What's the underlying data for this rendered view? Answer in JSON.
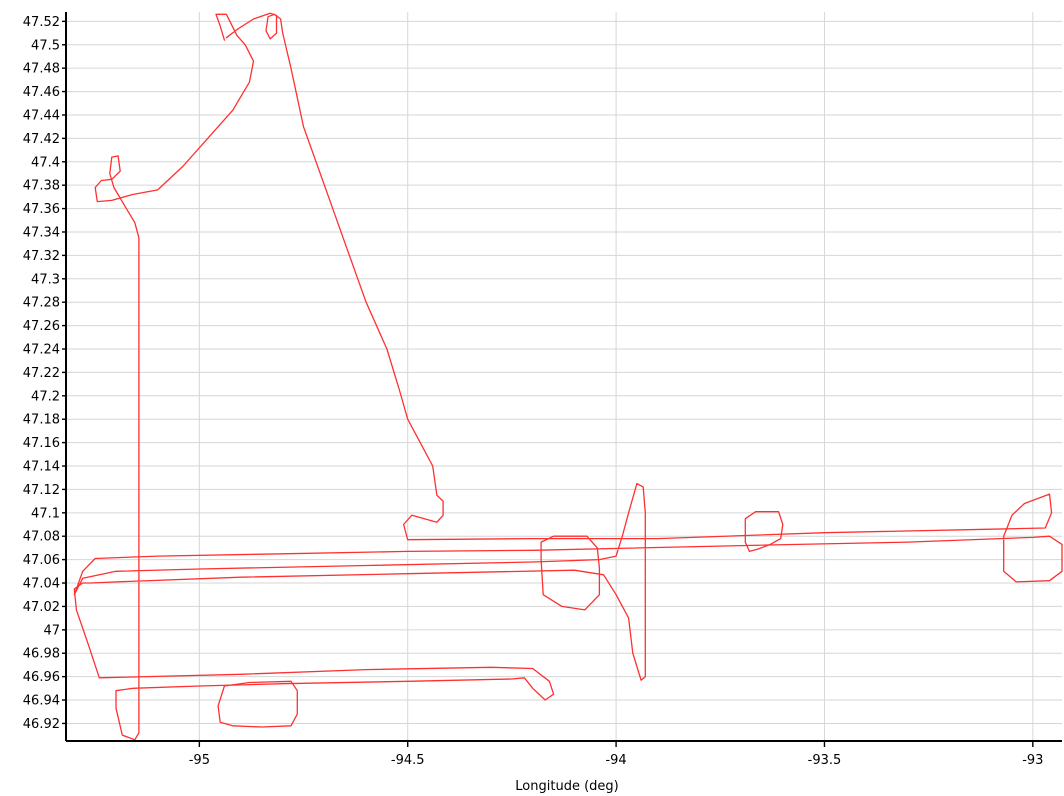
{
  "chart_data": {
    "type": "line",
    "title": "",
    "xlabel": "Longitude (deg)",
    "ylabel": "",
    "xlim": [
      -95.32,
      -92.93
    ],
    "ylim": [
      46.905,
      47.528
    ],
    "grid": true,
    "x_ticks": [
      {
        "value": -95,
        "label": "-95"
      },
      {
        "value": -94.5,
        "label": "-94.5"
      },
      {
        "value": -94,
        "label": "-94"
      },
      {
        "value": -93.5,
        "label": "-93.5"
      },
      {
        "value": -93,
        "label": "-93"
      }
    ],
    "y_ticks": [
      {
        "value": 47.52,
        "label": "47.52"
      },
      {
        "value": 47.5,
        "label": "47.5"
      },
      {
        "value": 47.48,
        "label": "47.48"
      },
      {
        "value": 47.46,
        "label": "47.46"
      },
      {
        "value": 47.44,
        "label": "47.44"
      },
      {
        "value": 47.42,
        "label": "47.42"
      },
      {
        "value": 47.4,
        "label": "47.4"
      },
      {
        "value": 47.38,
        "label": "47.38"
      },
      {
        "value": 47.36,
        "label": "47.36"
      },
      {
        "value": 47.34,
        "label": "47.34"
      },
      {
        "value": 47.32,
        "label": "47.32"
      },
      {
        "value": 47.3,
        "label": "47.3"
      },
      {
        "value": 47.28,
        "label": "47.28"
      },
      {
        "value": 47.26,
        "label": "47.26"
      },
      {
        "value": 47.24,
        "label": "47.24"
      },
      {
        "value": 47.22,
        "label": "47.22"
      },
      {
        "value": 47.2,
        "label": "47.2"
      },
      {
        "value": 47.18,
        "label": "47.18"
      },
      {
        "value": 47.16,
        "label": "47.16"
      },
      {
        "value": 47.14,
        "label": "47.14"
      },
      {
        "value": 47.12,
        "label": "47.12"
      },
      {
        "value": 47.1,
        "label": "47.1"
      },
      {
        "value": 47.08,
        "label": "47.08"
      },
      {
        "value": 47.06,
        "label": "47.06"
      },
      {
        "value": 47.04,
        "label": "47.04"
      },
      {
        "value": 47.02,
        "label": "47.02"
      },
      {
        "value": 47,
        "label": "47"
      },
      {
        "value": 46.98,
        "label": "46.98"
      },
      {
        "value": 46.96,
        "label": "46.96"
      },
      {
        "value": 46.94,
        "label": "46.94"
      },
      {
        "value": 46.92,
        "label": "46.92"
      }
    ],
    "series": [
      {
        "color": "#ff3030",
        "points": [
          [
            -94.94,
            47.504
          ],
          [
            -94.95,
            47.516
          ],
          [
            -94.96,
            47.526
          ],
          [
            -94.935,
            47.526
          ],
          [
            -94.91,
            47.508
          ],
          [
            -94.89,
            47.5
          ],
          [
            -94.87,
            47.486
          ],
          [
            -94.88,
            47.468
          ],
          [
            -94.92,
            47.444
          ],
          [
            -94.98,
            47.42
          ],
          [
            -95.04,
            47.396
          ],
          [
            -95.1,
            47.376
          ],
          [
            -95.16,
            47.372
          ],
          [
            -95.21,
            47.367
          ],
          [
            -95.245,
            47.366
          ],
          [
            -95.25,
            47.378
          ],
          [
            -95.235,
            47.384
          ],
          [
            -95.21,
            47.385
          ],
          [
            -95.19,
            47.392
          ],
          [
            -95.195,
            47.405
          ],
          [
            -95.21,
            47.404
          ],
          [
            -95.215,
            47.39
          ],
          [
            -95.205,
            47.378
          ],
          [
            -95.18,
            47.363
          ],
          [
            -95.155,
            47.348
          ],
          [
            -95.145,
            47.335
          ],
          [
            -95.145,
            47.0
          ],
          [
            -95.145,
            46.912
          ],
          [
            -95.155,
            46.906
          ],
          [
            -95.185,
            46.91
          ],
          [
            -95.2,
            46.933
          ],
          [
            -95.2,
            46.948
          ],
          [
            -95.16,
            46.95
          ],
          [
            -95.0,
            46.952
          ],
          [
            -94.8,
            46.954
          ],
          [
            -94.5,
            46.956
          ],
          [
            -94.25,
            46.958
          ],
          [
            -94.22,
            46.959
          ],
          [
            -94.2,
            46.95
          ],
          [
            -94.17,
            46.94
          ],
          [
            -94.15,
            46.945
          ],
          [
            -94.16,
            46.956
          ],
          [
            -94.2,
            46.967
          ],
          [
            -94.3,
            46.968
          ],
          [
            -94.6,
            46.966
          ],
          [
            -94.9,
            46.962
          ],
          [
            -95.24,
            46.959
          ],
          [
            -95.268,
            46.989
          ],
          [
            -95.295,
            47.017
          ],
          [
            -95.3,
            47.035
          ],
          [
            -95.28,
            47.04
          ],
          [
            -95.26,
            47.04
          ],
          [
            -95.2,
            47.041
          ],
          [
            -94.9,
            47.045
          ],
          [
            -94.5,
            47.048
          ],
          [
            -94.1,
            47.051
          ],
          [
            -94.03,
            47.047
          ],
          [
            -94.0,
            47.03
          ],
          [
            -93.97,
            47.01
          ],
          [
            -93.96,
            46.98
          ],
          [
            -93.94,
            46.957
          ],
          [
            -93.93,
            46.96
          ],
          [
            -93.93,
            47.0
          ],
          [
            -93.93,
            47.06
          ],
          [
            -93.93,
            47.1
          ],
          [
            -93.935,
            47.122
          ],
          [
            -93.95,
            47.125
          ],
          [
            -93.97,
            47.1
          ],
          [
            -93.985,
            47.08
          ],
          [
            -94.0,
            47.063
          ],
          [
            -94.04,
            47.06
          ],
          [
            -94.2,
            47.058
          ],
          [
            -94.6,
            47.055
          ],
          [
            -95.0,
            47.052
          ],
          [
            -95.2,
            47.05
          ],
          [
            -95.28,
            47.044
          ],
          [
            -95.3,
            47.03
          ],
          [
            -95.28,
            47.05
          ],
          [
            -95.25,
            47.061
          ],
          [
            -95.1,
            47.063
          ],
          [
            -94.8,
            47.065
          ],
          [
            -94.5,
            47.067
          ],
          [
            -94.2,
            47.068
          ],
          [
            -93.7,
            47.072
          ],
          [
            -93.3,
            47.075
          ],
          [
            -93.0,
            47.079
          ],
          [
            -92.96,
            47.08
          ],
          [
            -92.93,
            47.073
          ],
          [
            -92.93,
            47.05
          ],
          [
            -92.96,
            47.042
          ],
          [
            -93.04,
            47.041
          ],
          [
            -93.07,
            47.05
          ],
          [
            -93.07,
            47.08
          ],
          [
            -93.05,
            47.098
          ],
          [
            -93.02,
            47.108
          ],
          [
            -92.96,
            47.116
          ],
          [
            -92.955,
            47.1
          ],
          [
            -92.97,
            47.087
          ],
          [
            -93.1,
            47.086
          ],
          [
            -93.5,
            47.083
          ],
          [
            -93.9,
            47.078
          ],
          [
            -94.2,
            47.078
          ],
          [
            -94.5,
            47.077
          ],
          [
            -94.51,
            47.09
          ],
          [
            -94.49,
            47.098
          ],
          [
            -94.43,
            47.092
          ],
          [
            -94.415,
            47.098
          ],
          [
            -94.415,
            47.11
          ],
          [
            -94.43,
            47.115
          ],
          [
            -94.44,
            47.14
          ],
          [
            -94.47,
            47.16
          ],
          [
            -94.5,
            47.18
          ],
          [
            -94.52,
            47.205
          ],
          [
            -94.55,
            47.24
          ],
          [
            -94.6,
            47.28
          ],
          [
            -94.65,
            47.33
          ],
          [
            -94.7,
            47.38
          ],
          [
            -94.75,
            47.43
          ],
          [
            -94.78,
            47.48
          ],
          [
            -94.8,
            47.51
          ],
          [
            -94.805,
            47.522
          ],
          [
            -94.82,
            47.526
          ],
          [
            -94.835,
            47.524
          ],
          [
            -94.84,
            47.512
          ],
          [
            -94.83,
            47.505
          ],
          [
            -94.815,
            47.51
          ],
          [
            -94.815,
            47.525
          ],
          [
            -94.83,
            47.527
          ],
          [
            -94.87,
            47.522
          ],
          [
            -94.91,
            47.513
          ],
          [
            -94.935,
            47.506
          ]
        ]
      },
      {
        "color": "#ff3030",
        "points": [
          [
            -94.04,
            47.053
          ],
          [
            -94.04,
            47.03
          ],
          [
            -94.075,
            47.017
          ],
          [
            -94.13,
            47.02
          ],
          [
            -94.175,
            47.03
          ],
          [
            -94.18,
            47.06
          ],
          [
            -94.18,
            47.075
          ],
          [
            -94.15,
            47.08
          ],
          [
            -94.07,
            47.08
          ],
          [
            -94.045,
            47.07
          ],
          [
            -94.04,
            47.053
          ]
        ]
      },
      {
        "color": "#ff3030",
        "points": [
          [
            -93.66,
            47.069
          ],
          [
            -93.68,
            47.067
          ],
          [
            -93.69,
            47.075
          ],
          [
            -93.69,
            47.095
          ],
          [
            -93.665,
            47.101
          ],
          [
            -93.61,
            47.101
          ],
          [
            -93.6,
            47.09
          ],
          [
            -93.605,
            47.078
          ],
          [
            -93.63,
            47.073
          ],
          [
            -93.66,
            47.069
          ]
        ]
      },
      {
        "color": "#ff3030",
        "points": [
          [
            -94.92,
            46.918
          ],
          [
            -94.95,
            46.921
          ],
          [
            -94.955,
            46.935
          ],
          [
            -94.94,
            46.952
          ],
          [
            -94.88,
            46.955
          ],
          [
            -94.78,
            46.956
          ],
          [
            -94.765,
            46.948
          ],
          [
            -94.765,
            46.928
          ],
          [
            -94.78,
            46.918
          ],
          [
            -94.85,
            46.917
          ],
          [
            -94.92,
            46.918
          ]
        ]
      }
    ]
  }
}
